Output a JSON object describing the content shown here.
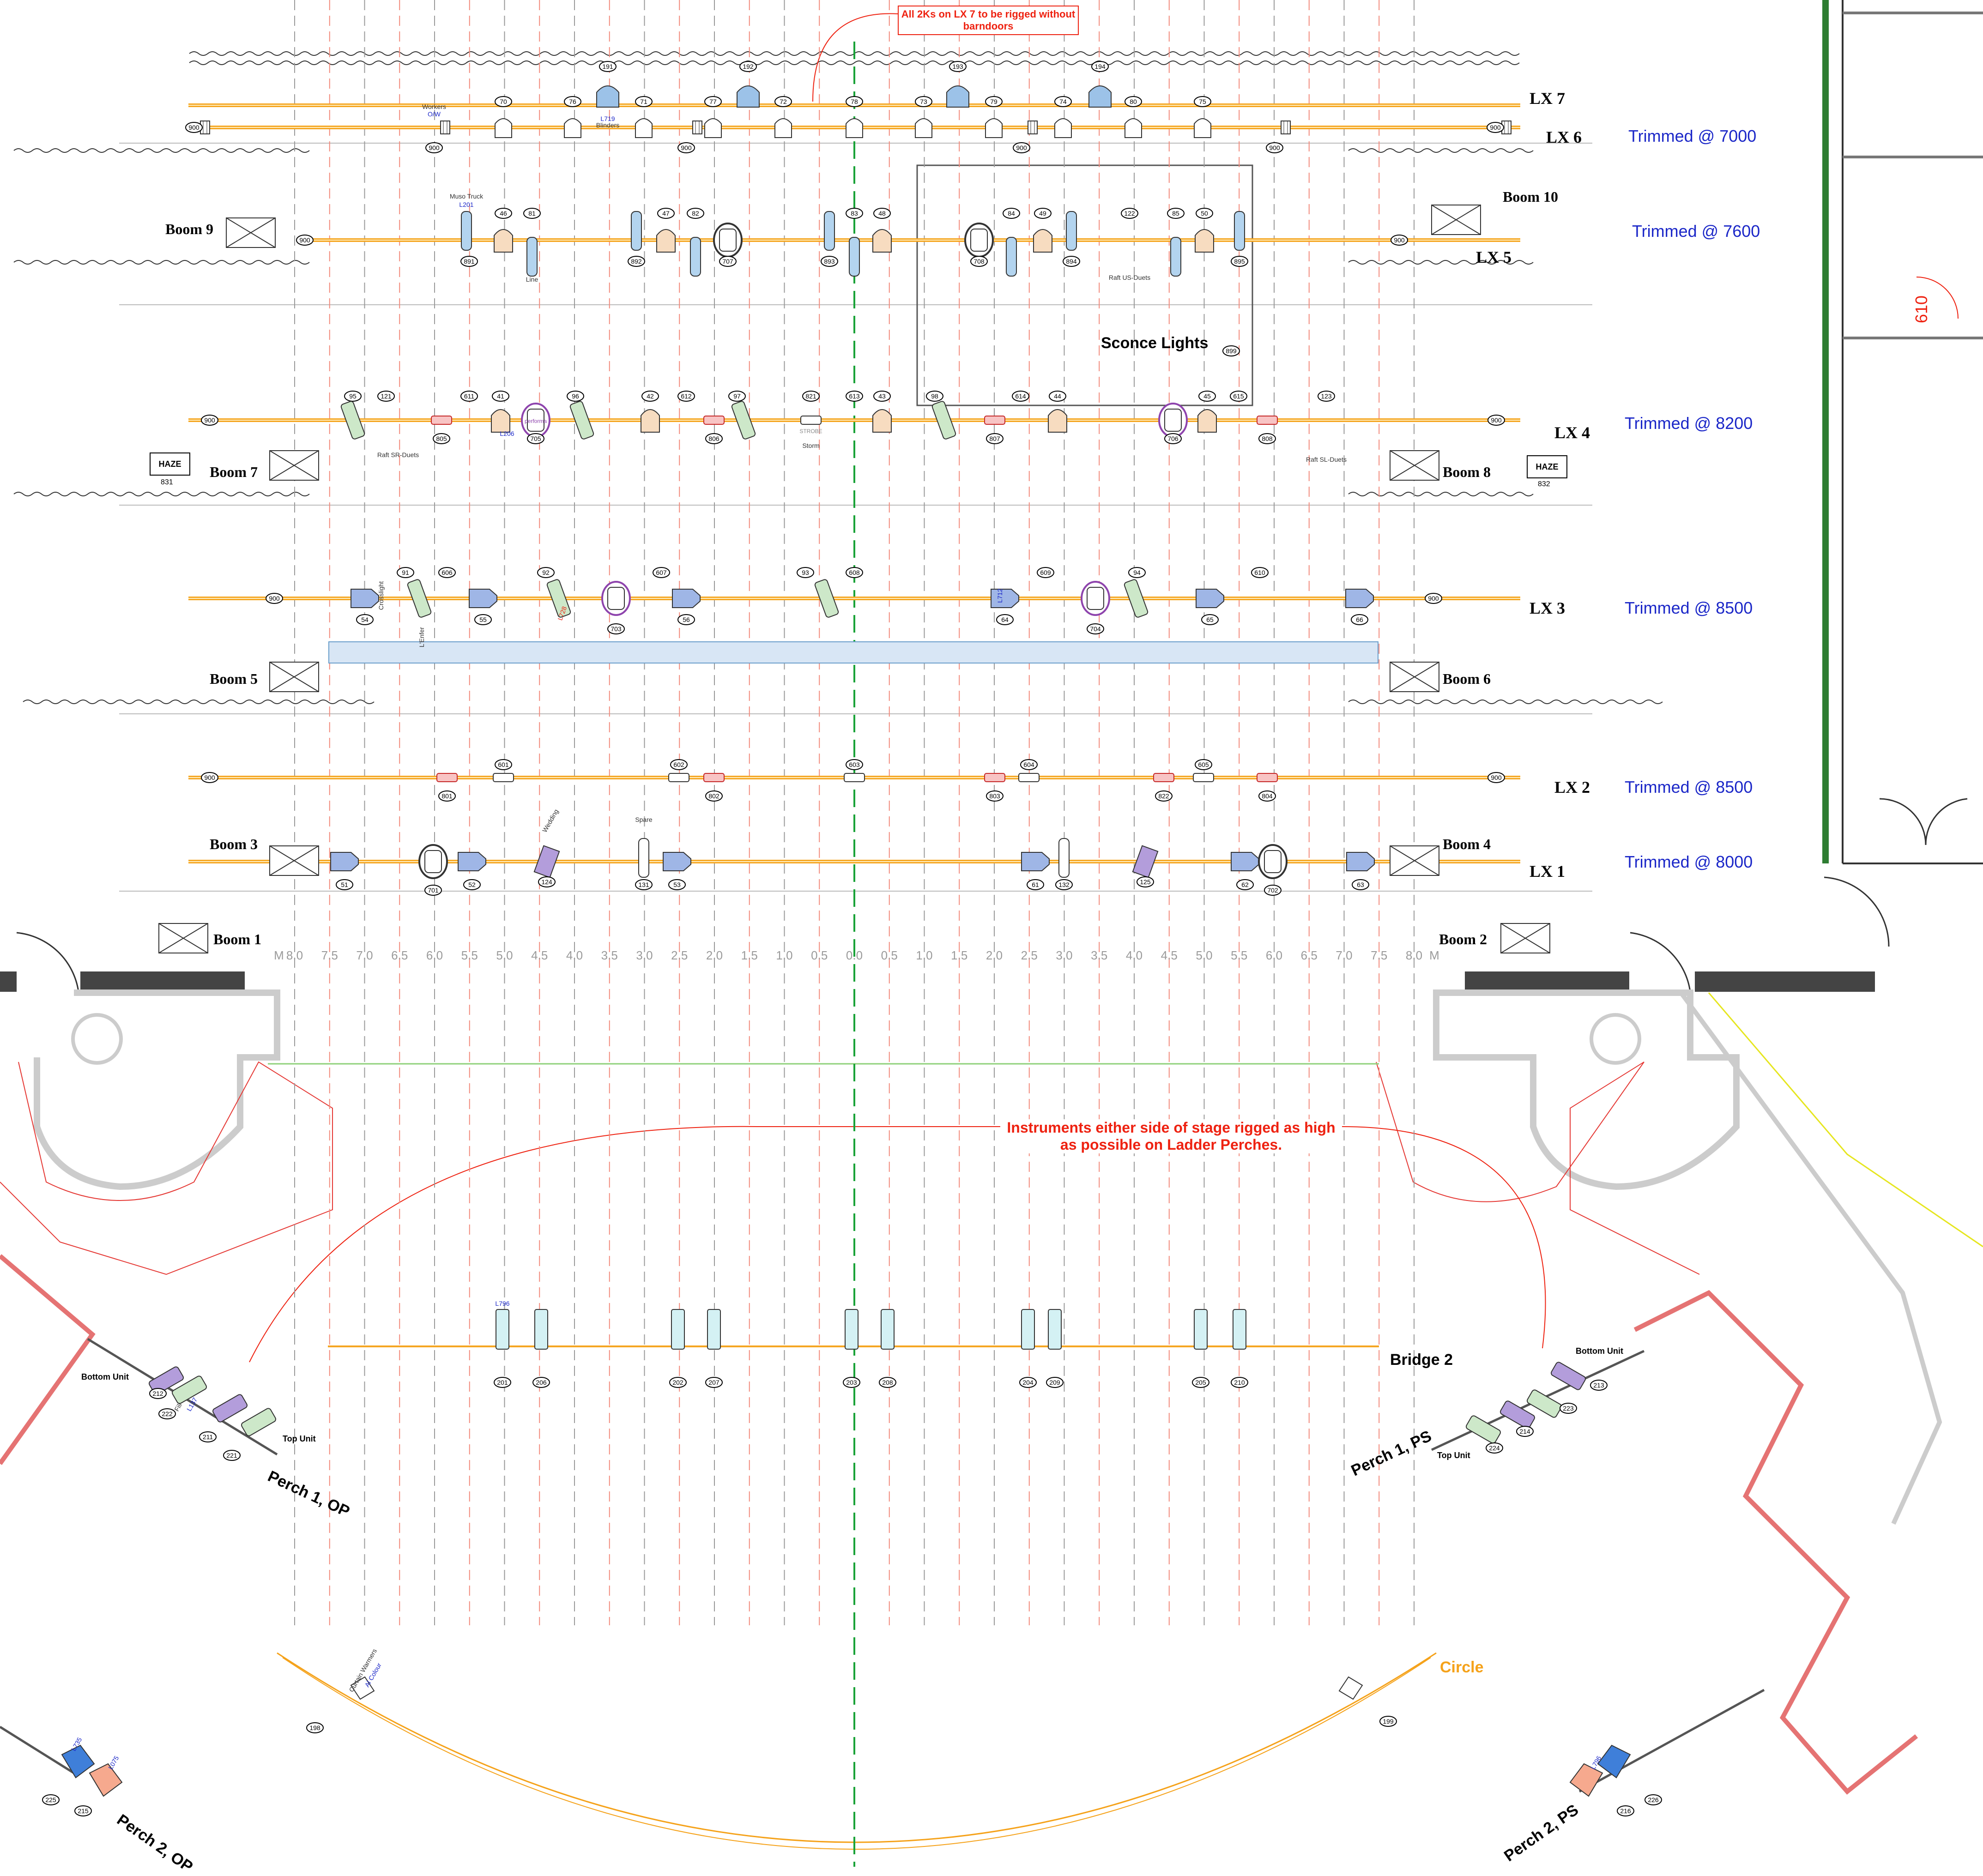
{
  "bars": [
    {
      "label": "LX 7",
      "trim": ""
    },
    {
      "label": "LX 6",
      "trim": "Trimmed @ 7000"
    },
    {
      "label": "LX 5",
      "trim": "Trimmed @ 7600"
    },
    {
      "label": "LX 4",
      "trim": "Trimmed @ 8200"
    },
    {
      "label": "LX 3",
      "trim": "Trimmed @ 8500"
    },
    {
      "label": "LX 2",
      "trim": "Trimmed @ 8500"
    },
    {
      "label": "LX 1",
      "trim": "Trimmed @ 8000"
    }
  ],
  "booms": [
    "Boom 1",
    "Boom 2",
    "Boom 3",
    "Boom 4",
    "Boom 5",
    "Boom 6",
    "Boom 7",
    "Boom 8",
    "Boom 9",
    "Boom 10"
  ],
  "positions": {
    "bridge": "Bridge 2",
    "circle": "Circle",
    "sconce": "Sconce Lights",
    "sconce_unit": "899",
    "perch1_op": "Perch 1, OP",
    "perch1_ps": "Perch 1, PS",
    "perch2_op": "Perch 2, OP",
    "perch2_ps": "Perch 2, PS",
    "bottom_unit": "Bottom Unit",
    "top_unit": "Top Unit",
    "room": "610"
  },
  "notes": {
    "lx7": "All 2Ks on LX 7 to be rigged without barndoors",
    "perches": "Instruments either side of stage rigged as high as possible on Ladder Perches."
  },
  "haze": {
    "label": "HAZE",
    "units": [
      "831",
      "832"
    ]
  },
  "scale": {
    "left_prefix": "M",
    "right_suffix": "M",
    "ticks": [
      "8.0",
      "7.5",
      "7.0",
      "6.5",
      "6.0",
      "5.5",
      "5.0",
      "4.5",
      "4.0",
      "3.5",
      "3.0",
      "2.5",
      "2.0",
      "1.5",
      "1.0",
      "0.5",
      "0.0",
      "0.5",
      "1.0",
      "1.5",
      "2.0",
      "2.5",
      "3.0",
      "3.5",
      "4.0",
      "4.5",
      "5.0",
      "5.5",
      "6.0",
      "6.5",
      "7.0",
      "7.5",
      "8.0"
    ]
  },
  "units": {
    "lx7_top": [
      "191",
      "192",
      "193",
      "194"
    ],
    "lx6_top": [
      "70",
      "76",
      "71",
      "77",
      "72",
      "78",
      "73",
      "79",
      "74",
      "80",
      "75"
    ],
    "lx6_bottom": [
      "900",
      "900",
      "900",
      "900",
      "900",
      "900",
      "900",
      "900"
    ],
    "lx5_top": [
      "46",
      "81",
      "47",
      "82",
      "83",
      "48",
      "84",
      "49",
      "122",
      "50",
      "85"
    ],
    "lx5_bottom": [
      "891",
      "892",
      "707",
      "893",
      "708",
      "894",
      "895"
    ],
    "lx4_top": [
      "95",
      "121",
      "611",
      "41",
      "96",
      "42",
      "612",
      "97",
      "821",
      "613",
      "43",
      "98",
      "614",
      "44",
      "45",
      "615",
      "123"
    ],
    "lx4_bottom": [
      "805",
      "705",
      "806",
      "807",
      "706",
      "808"
    ],
    "lx3_top": [
      "91",
      "606",
      "92",
      "607",
      "93",
      "608",
      "609",
      "94",
      "610"
    ],
    "lx3_bottom": [
      "54",
      "55",
      "703",
      "56",
      "64",
      "704",
      "65",
      "66"
    ],
    "lx2_top": [
      "601",
      "602",
      "603",
      "604",
      "605"
    ],
    "lx2_bottom": [
      "801",
      "802",
      "803",
      "822",
      "804"
    ],
    "lx1_bottom": [
      "51",
      "701",
      "52",
      "124",
      "131",
      "53",
      "61",
      "132",
      "125",
      "62",
      "702",
      "63"
    ],
    "bridge": [
      "201",
      "206",
      "202",
      "207",
      "203",
      "208",
      "204",
      "209",
      "205",
      "210"
    ],
    "perch1_op": [
      "212",
      "222",
      "211",
      "221"
    ],
    "perch1_ps": [
      "213",
      "223",
      "214",
      "224"
    ],
    "circle": [
      "198",
      "199"
    ],
    "perch2": [
      "225",
      "215",
      "226",
      "216"
    ]
  },
  "tags": {
    "gels": [
      "L201",
      "L206",
      "L712",
      "L728",
      "L719",
      "L063+R119",
      "L137",
      "L735",
      "L796",
      "L075"
    ],
    "types": [
      "Workers",
      "O/W",
      "Muso Truck",
      "Line",
      "Blinders",
      "Crosslight",
      "L'Enfer",
      "Raft SR-Duets",
      "Raft US-Duets",
      "Raft SL-Duets",
      "STROBE",
      "Storm",
      "Spare",
      "Wedding",
      "Fill",
      "Curtain Warmers",
      "Al Colour",
      "performa"
    ]
  }
}
